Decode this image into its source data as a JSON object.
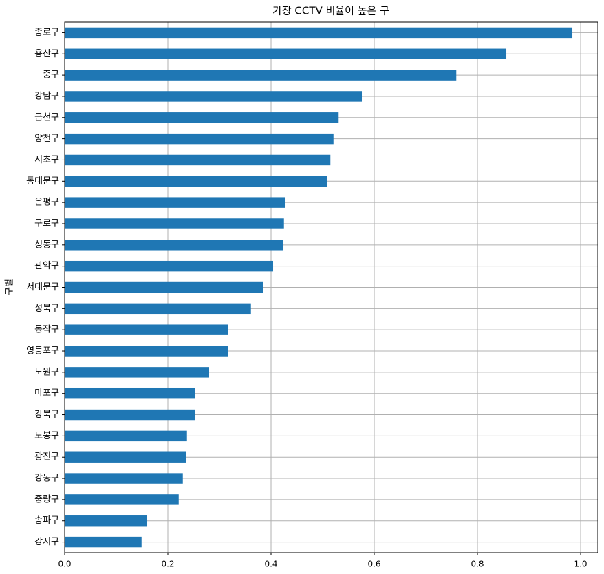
{
  "chart_data": {
    "type": "barh",
    "title": "가장 CCTV 비율이 높은 구",
    "y_label": "구별",
    "categories": [
      "종로구",
      "용산구",
      "중구",
      "강남구",
      "금천구",
      "양천구",
      "서초구",
      "동대문구",
      "은평구",
      "구로구",
      "성동구",
      "관악구",
      "서대문구",
      "성북구",
      "동작구",
      "영등포구",
      "노원구",
      "마포구",
      "강북구",
      "도봉구",
      "광진구",
      "강동구",
      "중랑구",
      "송파구",
      "강서구"
    ],
    "values": [
      0.984,
      0.856,
      0.759,
      0.576,
      0.531,
      0.521,
      0.515,
      0.509,
      0.428,
      0.425,
      0.424,
      0.404,
      0.385,
      0.361,
      0.317,
      0.317,
      0.28,
      0.253,
      0.252,
      0.237,
      0.235,
      0.229,
      0.221,
      0.16,
      0.149
    ],
    "color": "#1f77b4",
    "xlim": [
      0,
      1.0333
    ],
    "xticks": [
      {
        "value": 0,
        "label": "0.0"
      },
      0.2,
      0.4,
      0.6,
      0.8,
      {
        "value": 1,
        "label": "1.0"
      }
    ],
    "grid": true
  }
}
